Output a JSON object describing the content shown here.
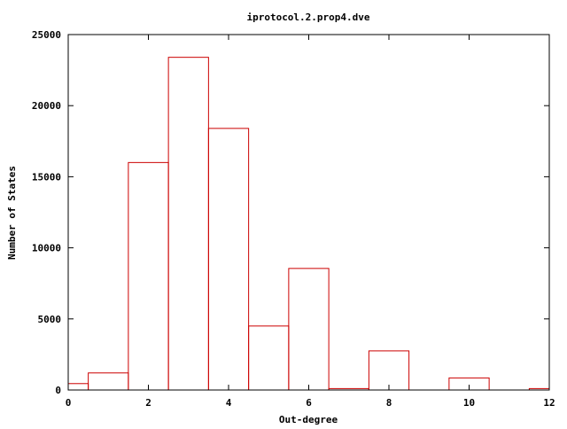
{
  "chart_data": {
    "type": "bar",
    "title": "iprotocol.2.prop4.dve",
    "xlabel": "Out-degree",
    "ylabel": "Number of States",
    "xlim": [
      0,
      12
    ],
    "ylim": [
      0,
      25000
    ],
    "x_ticks": [
      0,
      2,
      4,
      6,
      8,
      10,
      12
    ],
    "y_ticks": [
      0,
      5000,
      10000,
      15000,
      20000,
      25000
    ],
    "bar_width": 1,
    "bar_color": "#cc0000",
    "grid": false,
    "x": [
      0,
      1,
      2,
      3,
      4,
      5,
      6,
      7,
      8,
      9,
      10,
      11,
      12
    ],
    "values": [
      450,
      1200,
      16000,
      23400,
      18400,
      4500,
      8550,
      100,
      2750,
      0,
      850,
      0,
      100
    ]
  }
}
